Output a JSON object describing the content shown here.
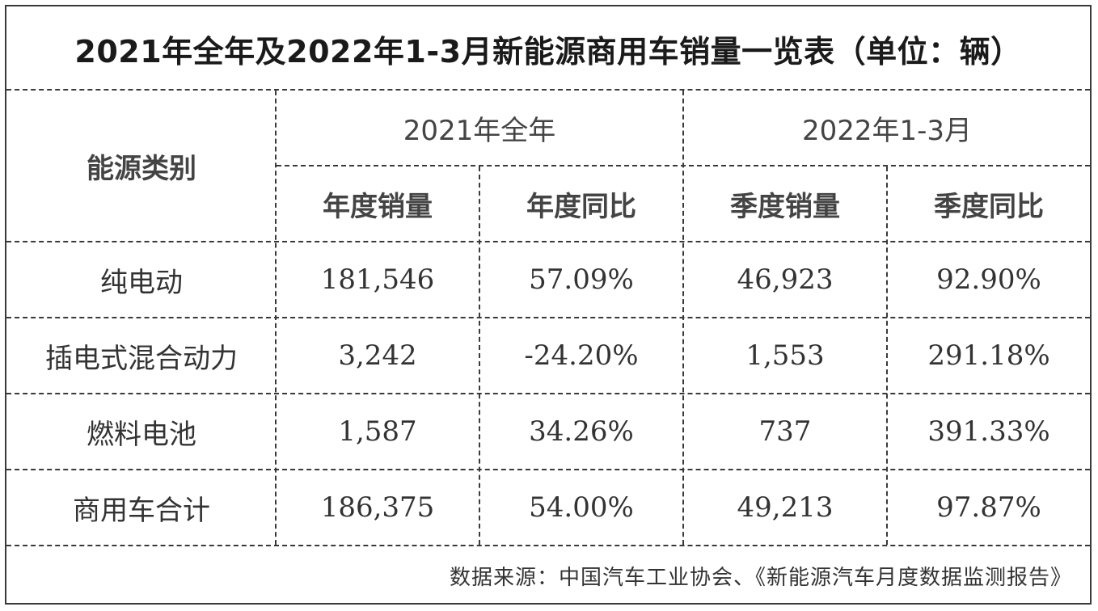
{
  "title": "2021年全年及2022年1-3月新能源商用车销量一览表（单位：辆）",
  "header": {
    "category": "能源类别",
    "group_2021": "2021年全年",
    "group_2022": "2022年1-3月",
    "annual_sales": "年度销量",
    "annual_yoy": "年度同比",
    "quarter_sales": "季度销量",
    "quarter_yoy": "季度同比"
  },
  "rows": [
    {
      "category": "纯电动",
      "annual_sales": "181,546",
      "annual_yoy": "57.09%",
      "quarter_sales": "46,923",
      "quarter_yoy": "92.90%"
    },
    {
      "category": "插电式混合动力",
      "annual_sales": "3,242",
      "annual_yoy": "-24.20%",
      "quarter_sales": "1,553",
      "quarter_yoy": "291.18%"
    },
    {
      "category": "燃料电池",
      "annual_sales": "1,587",
      "annual_yoy": "34.26%",
      "quarter_sales": "737",
      "quarter_yoy": "391.33%"
    },
    {
      "category": "商用车合计",
      "annual_sales": "186,375",
      "annual_yoy": "54.00%",
      "quarter_sales": "49,213",
      "quarter_yoy": "97.87%"
    }
  ],
  "source": "数据来源：中国汽车工业协会、《新能源汽车月度数据监测报告》"
}
